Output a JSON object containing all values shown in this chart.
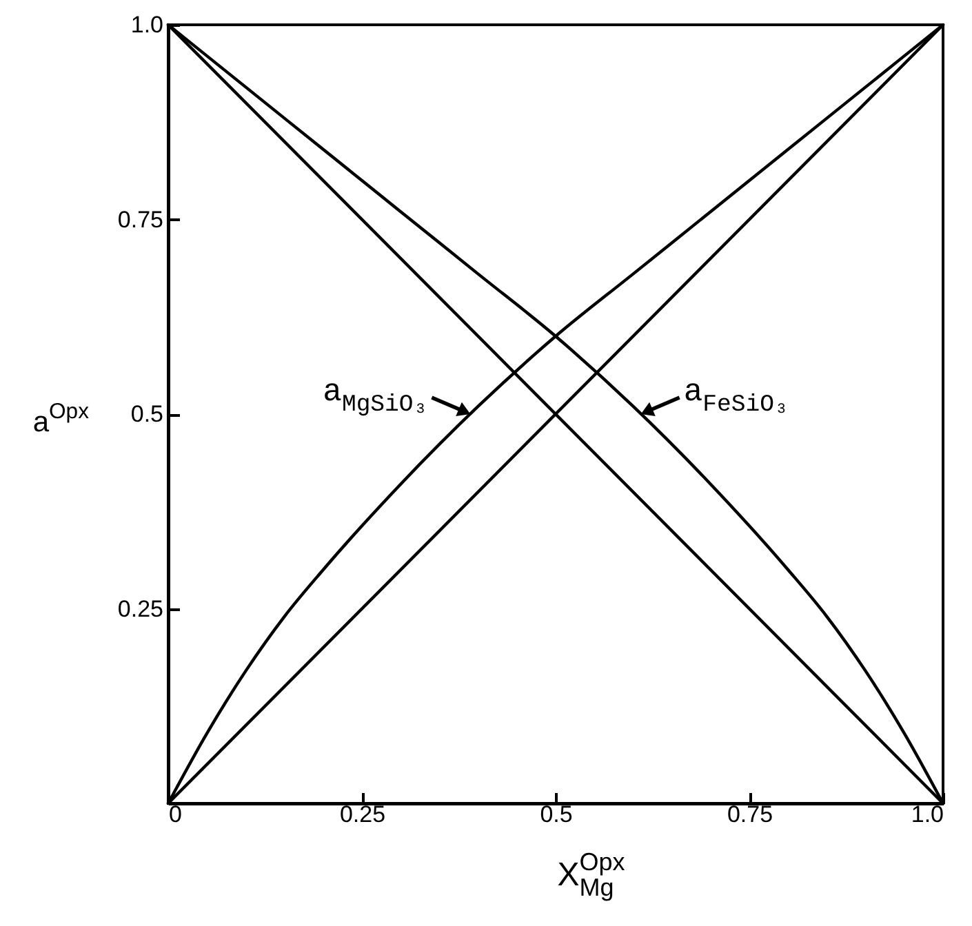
{
  "chart_data": {
    "type": "line",
    "xlabel": "X$^{Opx}$$_{Mg}$",
    "ylabel": "a$^{Opx}$",
    "xlim": [
      0,
      1
    ],
    "ylim": [
      0,
      1
    ],
    "xticks": [
      0,
      0.25,
      0.5,
      0.75,
      {
        "value": 1,
        "label": "1.0"
      }
    ],
    "yticks": [
      0.25,
      0.5,
      0.75,
      {
        "value": 1,
        "label": "1.0"
      }
    ],
    "series": [
      {
        "name": "a$_{MgSiO₃}$",
        "color": "#000000",
        "x": [
          0,
          0.05,
          0.1,
          0.15,
          0.2,
          0.3,
          0.4,
          0.5,
          0.6,
          0.7,
          0.8,
          0.9,
          1
        ],
        "values": [
          0,
          0.09,
          0.17,
          0.24,
          0.3,
          0.41,
          0.51,
          0.6,
          0.68,
          0.76,
          0.84,
          0.92,
          1
        ]
      },
      {
        "name": "a$_{FeSiO₃}$",
        "color": "#000000",
        "x": [
          0,
          0.1,
          0.2,
          0.3,
          0.4,
          0.5,
          0.6,
          0.7,
          0.8,
          0.85,
          0.9,
          0.95,
          1
        ],
        "values": [
          1,
          0.92,
          0.84,
          0.76,
          0.68,
          0.6,
          0.51,
          0.41,
          0.3,
          0.24,
          0.17,
          0.09,
          0
        ]
      },
      {
        "color": "#000000",
        "x": [
          0,
          1
        ],
        "values": [
          0,
          1
        ]
      },
      {
        "color": "#000000",
        "x": [
          0,
          1
        ],
        "values": [
          1,
          0
        ]
      }
    ]
  }
}
